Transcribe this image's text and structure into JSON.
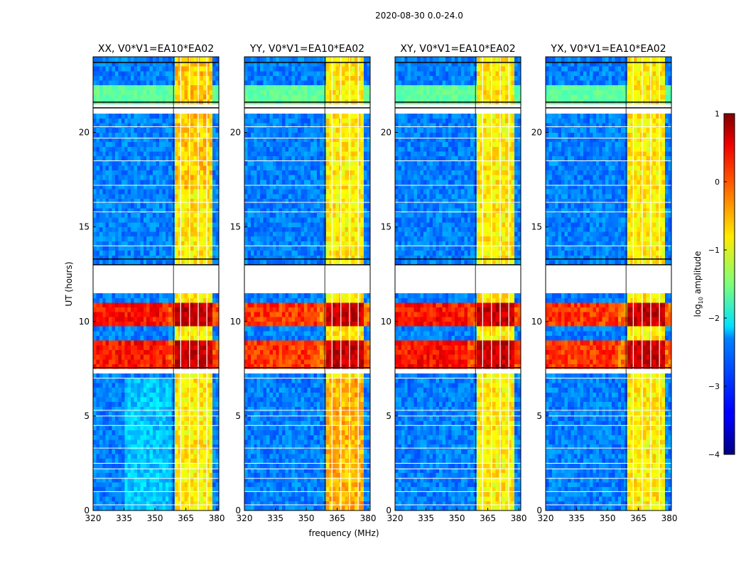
{
  "figure": {
    "suptitle": "2020-08-30 0.0-24.0"
  },
  "chart_data": {
    "type": "heatmap",
    "suptitle": "2020-08-30 0.0-24.0",
    "xlabel": "frequency (MHz)",
    "ylabel": "UT (hours)",
    "xlim": [
      320,
      381
    ],
    "ylim": [
      0,
      24
    ],
    "xticks": [
      320,
      335,
      350,
      365,
      380
    ],
    "yticks": [
      0,
      5,
      10,
      15,
      20
    ],
    "colorbar": {
      "label_prefix": "log",
      "label_sub": "10",
      "label_suffix": " amplitude",
      "range": [
        -4,
        1
      ],
      "ticks": [
        1,
        0,
        -1,
        -2,
        -3,
        -4
      ],
      "colormap": "jet"
    },
    "panels": [
      {
        "title": "XX, V0*V1=EA10*EA02",
        "pol": "XX"
      },
      {
        "title": "YY, V0*V1=EA10*EA02",
        "pol": "YY"
      },
      {
        "title": "XY, V0*V1=EA10*EA02",
        "pol": "XY"
      },
      {
        "title": "YX, V0*V1=EA10*EA02",
        "pol": "YX"
      }
    ],
    "data_gaps_hours": [
      [
        11.6,
        12.9
      ],
      [
        7.25,
        7.45
      ],
      [
        21.0,
        21.5
      ]
    ],
    "strong_band_mhz": [
      359,
      378.5
    ],
    "bright_time_bands_hours": [
      [
        7.6,
        8.9
      ],
      [
        9.8,
        11.0
      ]
    ]
  }
}
